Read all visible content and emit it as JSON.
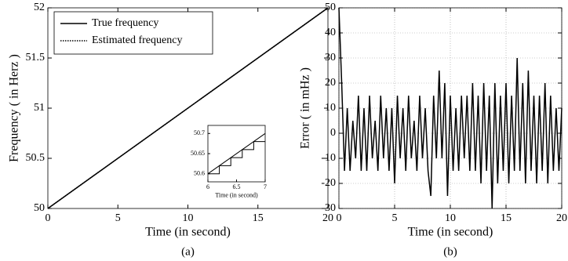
{
  "chart_data": [
    {
      "type": "line",
      "caption": "(a)",
      "xlabel": "Time (in second)",
      "ylabel": "Frequency ( in Herz )",
      "xlim": [
        0,
        20
      ],
      "ylim": [
        50,
        52
      ],
      "xticks": [
        0,
        5,
        10,
        15,
        20
      ],
      "yticks": [
        50,
        50.5,
        51,
        51.5,
        52
      ],
      "grid": false,
      "legend": "upper left",
      "series": [
        {
          "name": "True frequency",
          "color": "#000000",
          "style": "solid",
          "x": [
            0,
            20
          ],
          "values": [
            50,
            52
          ]
        },
        {
          "name": "Estimated frequency",
          "color": "#000000",
          "style": "dotted",
          "x": [
            0,
            1,
            2,
            3,
            4,
            5,
            6,
            7,
            8,
            9,
            10,
            11,
            12,
            13,
            14,
            15,
            16,
            17,
            18,
            19,
            20
          ],
          "values": [
            50.0,
            50.1,
            50.2,
            50.3,
            50.4,
            50.5,
            50.6,
            50.7,
            50.8,
            50.9,
            51.0,
            51.1,
            51.2,
            51.3,
            51.4,
            51.5,
            51.6,
            51.7,
            51.8,
            51.9,
            52.0
          ]
        }
      ],
      "inset": {
        "type": "line",
        "xlabel": "Time (in second)",
        "xlim": [
          6,
          7
        ],
        "ylim": [
          50.58,
          50.72
        ],
        "xticks": [
          6,
          6.5,
          7
        ],
        "yticks": [
          50.6,
          50.65,
          50.7
        ],
        "grid": false,
        "series": [
          {
            "color": "#000000",
            "style": "solid",
            "x": [
              6,
              7
            ],
            "values": [
              50.6,
              50.7
            ]
          },
          {
            "color": "#000000",
            "style": "solid",
            "x": [
              6,
              6.2,
              6.2,
              6.4,
              6.4,
              6.6,
              6.6,
              6.8,
              6.8,
              7
            ],
            "values": [
              50.6,
              50.6,
              50.62,
              50.62,
              50.64,
              50.64,
              50.66,
              50.66,
              50.68,
              50.68
            ]
          }
        ]
      }
    },
    {
      "type": "line",
      "caption": "(b)",
      "xlabel": "Time (in second)",
      "ylabel": "Error ( in mHz )",
      "xlim": [
        0,
        20
      ],
      "ylim": [
        -30,
        50
      ],
      "xticks": [
        0,
        5,
        10,
        15,
        20
      ],
      "yticks": [
        -30,
        -20,
        -10,
        0,
        10,
        20,
        30,
        40,
        50
      ],
      "grid": true,
      "series": [
        {
          "color": "#000000",
          "style": "solid",
          "x": [
            0,
            0.25,
            0.5,
            0.75,
            1,
            1.25,
            1.5,
            1.75,
            2,
            2.25,
            2.5,
            2.75,
            3,
            3.25,
            3.5,
            3.75,
            4,
            4.25,
            4.5,
            4.75,
            5,
            5.25,
            5.5,
            5.75,
            6,
            6.25,
            6.5,
            6.75,
            7,
            7.25,
            7.5,
            7.75,
            8,
            8.25,
            8.5,
            8.75,
            9,
            9.25,
            9.5,
            9.75,
            10,
            10.25,
            10.5,
            10.75,
            11,
            11.25,
            11.5,
            11.75,
            12,
            12.25,
            12.5,
            12.75,
            13,
            13.25,
            13.5,
            13.75,
            14,
            14.25,
            14.5,
            14.75,
            15,
            15.25,
            15.5,
            15.75,
            16,
            16.25,
            16.5,
            16.75,
            17,
            17.25,
            17.5,
            17.75,
            18,
            18.25,
            18.5,
            18.75,
            19,
            19.25,
            19.5,
            19.75,
            20
          ],
          "values": [
            50,
            20,
            -15,
            10,
            -15,
            5,
            -10,
            15,
            -15,
            10,
            -15,
            15,
            -10,
            5,
            -15,
            15,
            -10,
            10,
            -15,
            10,
            -20,
            15,
            -10,
            10,
            -15,
            15,
            -10,
            5,
            -15,
            15,
            -10,
            10,
            -15,
            -25,
            15,
            -10,
            25,
            -10,
            20,
            -25,
            15,
            -15,
            10,
            -15,
            15,
            -10,
            15,
            -15,
            20,
            -15,
            15,
            -20,
            20,
            -15,
            15,
            -30,
            20,
            -20,
            15,
            -15,
            20,
            -20,
            15,
            -15,
            30,
            -15,
            20,
            -20,
            25,
            -15,
            15,
            -20,
            15,
            -15,
            20,
            -20,
            15,
            -15,
            10,
            -15,
            10
          ]
        }
      ]
    }
  ]
}
